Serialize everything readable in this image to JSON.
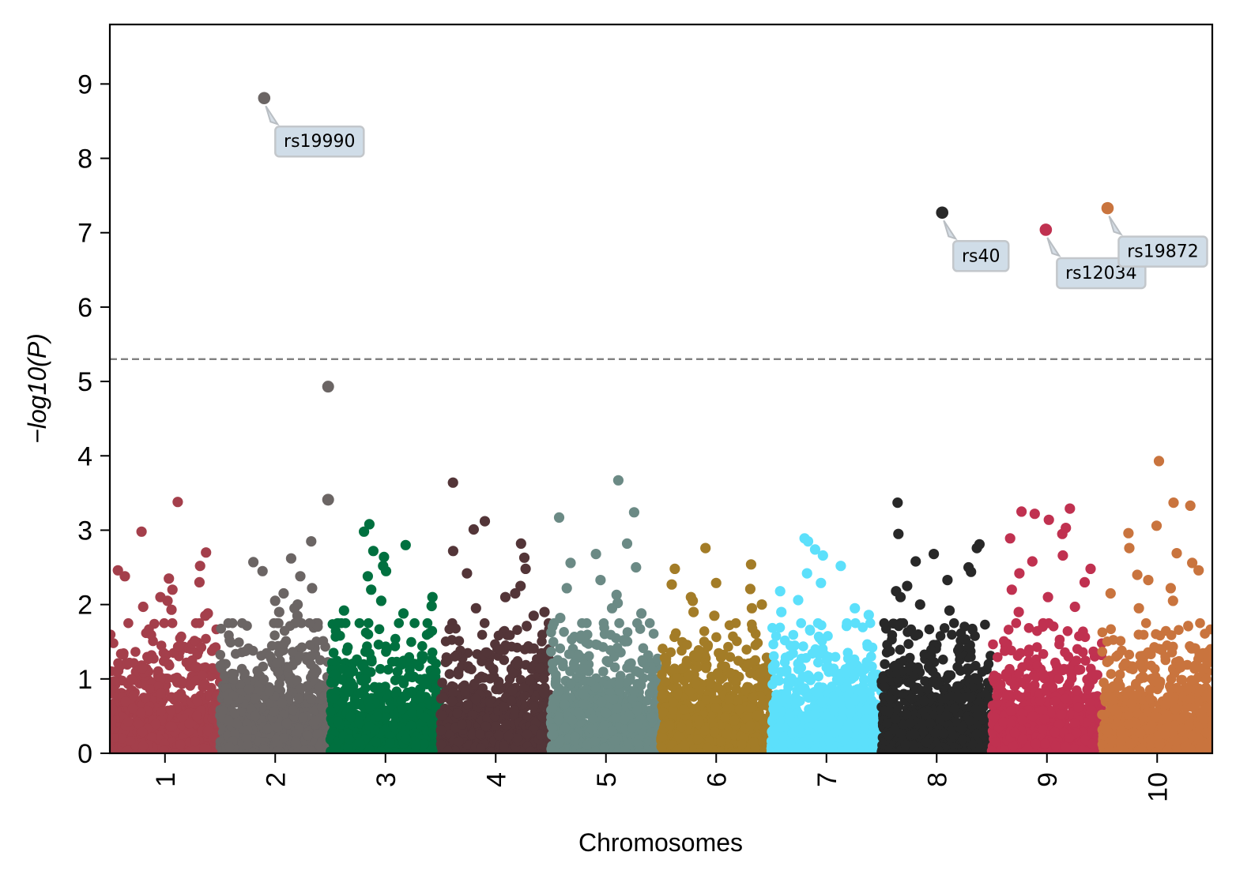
{
  "chart_data": {
    "type": "scatter",
    "subtype": "manhattan",
    "title": "",
    "xlabel": "Chromosomes",
    "ylabel": "−log10(P)",
    "ylim": [
      0,
      9.8
    ],
    "yticks": [
      0,
      1,
      2,
      3,
      4,
      5,
      6,
      7,
      8,
      9
    ],
    "grid": false,
    "threshold": {
      "value": 5.3,
      "style": "dashed",
      "color": "#808080"
    },
    "chromosomes": [
      {
        "label": "1",
        "color": "#a43f4b",
        "peaks": [
          3.38,
          2.98,
          2.7,
          2.52,
          2.46,
          2.38,
          2.35,
          2.3,
          2.2,
          2.1,
          2.05,
          1.97,
          1.93,
          1.88,
          1.85
        ]
      },
      {
        "label": "2",
        "color": "#6b6564",
        "peaks": [
          2.85,
          2.62,
          2.57,
          2.45,
          2.38,
          2.22,
          2.15,
          2.05,
          2.0,
          1.95,
          1.9,
          1.85
        ]
      },
      {
        "label": "3",
        "color": "#00703f",
        "peaks": [
          3.08,
          2.98,
          2.8,
          2.72,
          2.64,
          2.52,
          2.45,
          2.38,
          2.2,
          2.1,
          2.05,
          1.98,
          1.92,
          1.88
        ]
      },
      {
        "label": "4",
        "color": "#533538",
        "peaks": [
          3.64,
          3.12,
          3.01,
          2.82,
          2.72,
          2.63,
          2.48,
          2.42,
          2.25,
          2.15,
          2.1,
          1.95,
          1.9,
          1.85
        ]
      },
      {
        "label": "5",
        "color": "#6b8a85",
        "peaks": [
          3.67,
          3.24,
          3.17,
          2.82,
          2.68,
          2.56,
          2.5,
          2.33,
          2.22,
          2.13,
          2.02,
          1.95,
          1.88,
          1.82
        ]
      },
      {
        "label": "6",
        "color": "#a37c27",
        "peaks": [
          2.76,
          2.54,
          2.48,
          2.29,
          2.27,
          2.21,
          2.1,
          2.05,
          2.0,
          1.95,
          1.9,
          1.85
        ]
      },
      {
        "label": "7",
        "color": "#5ce0fb",
        "peaks": [
          2.89,
          2.85,
          2.74,
          2.66,
          2.52,
          2.42,
          2.29,
          2.18,
          2.06,
          1.95,
          1.9,
          1.86
        ]
      },
      {
        "label": "8",
        "color": "#282828",
        "peaks": [
          3.37,
          2.95,
          2.81,
          2.76,
          2.68,
          2.58,
          2.5,
          2.44,
          2.33,
          2.25,
          2.18,
          2.1,
          2.0,
          1.92
        ]
      },
      {
        "label": "9",
        "color": "#c03150",
        "peaks": [
          3.29,
          3.25,
          3.22,
          3.14,
          3.03,
          2.95,
          2.89,
          2.66,
          2.58,
          2.48,
          2.42,
          2.3,
          2.2,
          2.1,
          1.97,
          1.9
        ]
      },
      {
        "label": "10",
        "color": "#c9743e",
        "peaks": [
          3.93,
          3.37,
          3.33,
          3.06,
          2.96,
          2.76,
          2.69,
          2.56,
          2.46,
          2.4,
          2.33,
          2.22,
          2.15,
          2.05,
          1.95
        ]
      }
    ],
    "significant_points": [
      {
        "chrom": "2",
        "pos": 0.4,
        "y": 8.81,
        "label": "rs19990"
      },
      {
        "chrom": "8",
        "pos": 0.55,
        "y": 7.27,
        "label": "rs40"
      },
      {
        "chrom": "9",
        "pos": 0.49,
        "y": 7.04,
        "label": "rs12034"
      },
      {
        "chrom": "10",
        "pos": 0.05,
        "y": 7.33,
        "label": "rs19872"
      }
    ],
    "other_highlighted_points": [
      {
        "chrom": "2",
        "pos": 0.98,
        "y": 4.93
      },
      {
        "chrom": "2",
        "pos": 0.98,
        "y": 3.41
      }
    ]
  }
}
